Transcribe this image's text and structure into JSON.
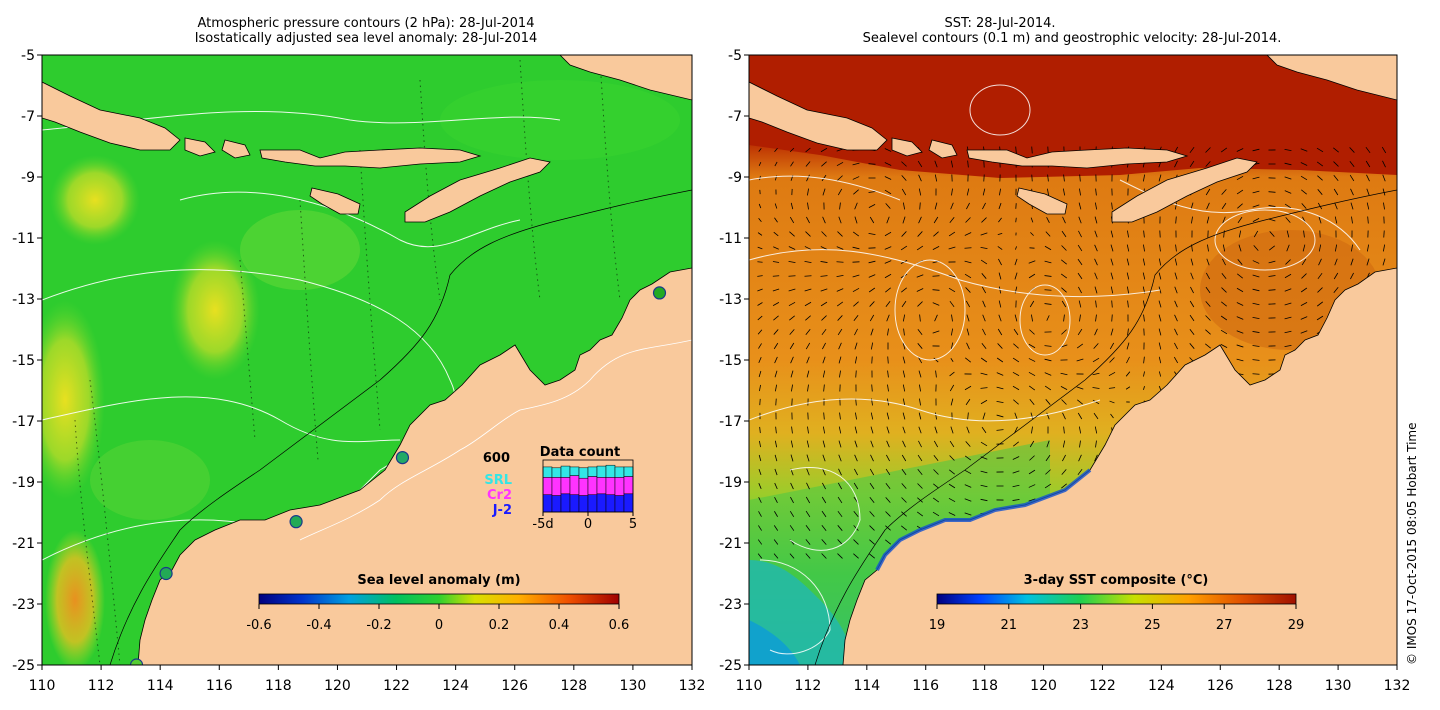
{
  "left_panel": {
    "title_line1": "Atmospheric pressure contours (2 hPa): 28-Jul-2014",
    "title_line2": "Isostatically adjusted sea level anomaly: 28-Jul-2014",
    "x_ticks": [
      "110",
      "112",
      "114",
      "116",
      "118",
      "120",
      "122",
      "124",
      "126",
      "128",
      "130",
      "132"
    ],
    "y_ticks": [
      "-5",
      "-7",
      "-9",
      "-11",
      "-13",
      "-15",
      "-17",
      "-19",
      "-21",
      "-23",
      "-25"
    ],
    "colorbar": {
      "title": "Sea level anomaly (m)",
      "ticks": [
        "-0.6",
        "-0.4",
        "-0.2",
        "0",
        "0.2",
        "0.4",
        "0.6"
      ]
    },
    "data_count": {
      "title": "Data count",
      "ymax_label": "600",
      "x_ticks": [
        "-5d",
        "0",
        "5"
      ],
      "series": [
        {
          "name": "SRL",
          "color": "#33e6e6",
          "values": [
            120,
            110,
            130,
            100,
            120,
            110,
            130,
            140,
            120,
            110
          ]
        },
        {
          "name": "Cr2",
          "color": "#ff33ff",
          "values": [
            200,
            210,
            190,
            220,
            200,
            210,
            190,
            200,
            210,
            200
          ]
        },
        {
          "name": "J-2",
          "color": "#1a1aff",
          "values": [
            200,
            190,
            210,
            200,
            190,
            200,
            210,
            200,
            190,
            210
          ]
        }
      ],
      "ymax": 600
    },
    "tide_gauges": [
      {
        "lon": 130.9,
        "lat": -12.8,
        "color": "#22aa22"
      },
      {
        "lon": 122.2,
        "lat": -18.2,
        "color": "#22aa66"
      },
      {
        "lon": 118.6,
        "lat": -20.3,
        "color": "#22aa55"
      },
      {
        "lon": 114.2,
        "lat": -22.0,
        "color": "#22aa55"
      },
      {
        "lon": 113.2,
        "lat": -25.0,
        "color": "#55cc33"
      }
    ]
  },
  "right_panel": {
    "title_line1": "SST: 28-Jul-2014.",
    "title_line2": "Sealevel contours (0.1 m) and geostrophic velocity: 28-Jul-2014.",
    "x_ticks": [
      "110",
      "112",
      "114",
      "116",
      "118",
      "120",
      "122",
      "124",
      "126",
      "128",
      "130",
      "132"
    ],
    "y_ticks": [
      "-5",
      "-7",
      "-9",
      "-11",
      "-13",
      "-15",
      "-17",
      "-19",
      "-21",
      "-23",
      "-25"
    ],
    "colorbar": {
      "title": "3-day SST composite (°C)",
      "ticks": [
        "19",
        "21",
        "23",
        "25",
        "27",
        "29"
      ]
    }
  },
  "credit": "© IMOS 17-Oct-2015 08:05 Hobart Time",
  "colors": {
    "land": "#f9c99c",
    "sla_base": "#2ecc2e",
    "sst_warm": "#e07a10",
    "sst_hot": "#a81400",
    "sst_cool": "#22cc66"
  }
}
